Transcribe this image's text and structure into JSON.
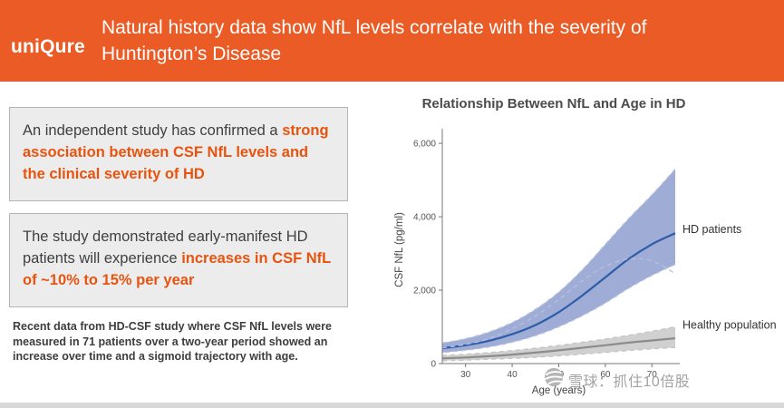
{
  "header": {
    "logo": "uniQure",
    "title_line1": "Natural history data show NfL levels correlate with the severity of",
    "title_line2": "Huntington’s Disease"
  },
  "left_panel": {
    "box1": {
      "normal": "An independent study has confirmed a ",
      "highlight": "strong association between CSF NfL levels and the clinical severity of HD"
    },
    "box2": {
      "normal": "The study demonstrated early-manifest HD patients will experience ",
      "highlight": "increases in CSF NfL of ~10% to 15% per year"
    },
    "footnote": "Recent data from HD-CSF study where CSF NfL levels were measured in 71 patients over a two-year period showed an increase over time and a sigmoid trajectory with age."
  },
  "watermark": {
    "icon": "snowball-logo",
    "text": "雪球：抓住10倍股"
  },
  "colors": {
    "accent_orange": "#EB5B25",
    "highlight_orange": "#E8540F",
    "hd_line_blue": "#2D5DA8",
    "hd_band_blue": "#8E9ECF",
    "healthy_line_gray": "#8C8C8C",
    "healthy_band_gray": "#C8C8C8"
  },
  "chart_data": {
    "type": "line",
    "title": "Relationship Between NfL and Age in HD",
    "xlabel": "Age (years)",
    "ylabel": "CSF NfL (pg/ml)",
    "xlim": [
      25,
      75
    ],
    "ylim": [
      0,
      6200
    ],
    "x_ticks": [
      30,
      40,
      50,
      60,
      70
    ],
    "y_ticks": [
      0,
      2000,
      4000,
      6000
    ],
    "y_tick_labels": [
      "0",
      "2,000",
      "4,000",
      "6,000"
    ],
    "grid": false,
    "legend_position": "right-of-curves",
    "x": [
      25,
      30,
      35,
      40,
      45,
      50,
      55,
      60,
      65,
      70,
      75
    ],
    "series": [
      {
        "name": "HD patients",
        "line_color": "#2D5DA8",
        "band_color": "#8E9ECF",
        "edge_color": "#B9C4DF",
        "label_y": 3650,
        "mean": [
          420,
          500,
          620,
          800,
          1050,
          1400,
          1850,
          2350,
          2850,
          3250,
          3550
        ],
        "upper": [
          560,
          680,
          860,
          1120,
          1480,
          1950,
          2550,
          3250,
          3950,
          4600,
          5300
        ],
        "lower": [
          300,
          360,
          450,
          580,
          760,
          1000,
          1300,
          1650,
          2050,
          2400,
          2700
        ]
      },
      {
        "name": "Healthy population",
        "line_color": "#8C8C8C",
        "band_color": "#C8C8C8",
        "edge_color": "#C4C4C4",
        "label_y": 1050,
        "mean": [
          140,
          165,
          200,
          245,
          300,
          360,
          430,
          500,
          570,
          630,
          690
        ],
        "upper": [
          220,
          255,
          300,
          355,
          420,
          495,
          580,
          670,
          770,
          880,
          1000
        ],
        "lower": [
          80,
          95,
          115,
          140,
          170,
          210,
          255,
          305,
          355,
          400,
          440
        ]
      },
      {
        "name": "",
        "style": "dashed",
        "line_color": "#B5C1DC",
        "mean": [
          430,
          520,
          680,
          950,
          1300,
          1750,
          2250,
          2650,
          2850,
          2800,
          2450
        ]
      }
    ]
  }
}
